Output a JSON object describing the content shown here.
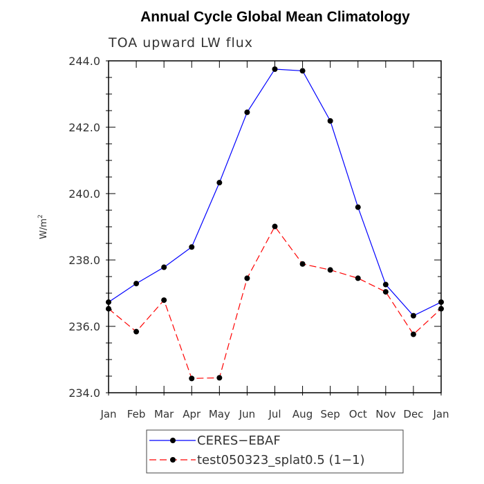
{
  "chart_data": {
    "type": "line",
    "title": "Annual Cycle Global Mean Climatology",
    "subtitle": "TOA upward LW flux",
    "ylabel": "W/m",
    "ylabel_sup": "2",
    "xlabel": "",
    "categories": [
      "Jan",
      "Feb",
      "Mar",
      "Apr",
      "May",
      "Jun",
      "Jul",
      "Aug",
      "Sep",
      "Oct",
      "Nov",
      "Dec",
      "Jan"
    ],
    "ylim": [
      234.0,
      244.0
    ],
    "yticks": [
      "234.0",
      "236.0",
      "238.0",
      "240.0",
      "242.0",
      "244.0"
    ],
    "series": [
      {
        "name": "CERES−EBAF",
        "color": "#0000ff",
        "dash": "solid",
        "values": [
          236.73,
          237.29,
          237.78,
          238.39,
          240.33,
          242.45,
          243.75,
          243.7,
          242.19,
          239.59,
          237.26,
          236.32,
          236.73
        ]
      },
      {
        "name": "test050323_splat0.5 (1−1)",
        "color": "#ff0000",
        "dash": "dashed",
        "values": [
          236.53,
          235.84,
          236.79,
          234.43,
          234.45,
          237.45,
          239.01,
          237.88,
          237.7,
          237.45,
          237.04,
          235.76,
          236.53
        ]
      }
    ],
    "legend_position": "bottom-center",
    "grid": false
  }
}
